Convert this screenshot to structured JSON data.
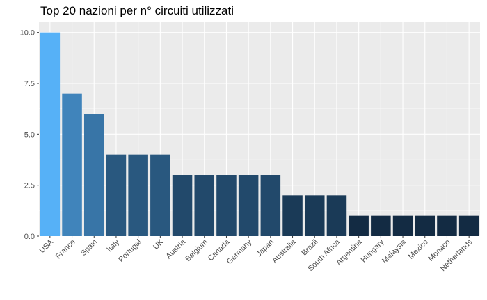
{
  "chart_data": {
    "type": "bar",
    "title": "Top 20 nazioni per n° circuiti utilizzati",
    "xlabel": "",
    "ylabel": "",
    "categories": [
      "USA",
      "France",
      "Spain",
      "Italy",
      "Portugal",
      "UK",
      "Austria",
      "Belgium",
      "Canada",
      "Germany",
      "Japan",
      "Australia",
      "Brazil",
      "South Africa",
      "Argentina",
      "Hungary",
      "Malaysia",
      "Mexico",
      "Monaco",
      "Netherlands"
    ],
    "values": [
      10,
      7,
      6,
      4,
      4,
      4,
      3,
      3,
      3,
      3,
      3,
      2,
      2,
      2,
      1,
      1,
      1,
      1,
      1,
      1
    ],
    "ylim": [
      0,
      10.5
    ],
    "yticks": [
      "0.0",
      "2.5",
      "5.0",
      "7.5",
      "10.0"
    ],
    "grid": true,
    "legend": "none",
    "colors": {
      "panel_background": "#ebebeb",
      "grid_major": "#ffffff",
      "grid_minor": "#f5f5f5",
      "fill_low": "#132b43",
      "fill_high": "#56b1f7"
    }
  }
}
